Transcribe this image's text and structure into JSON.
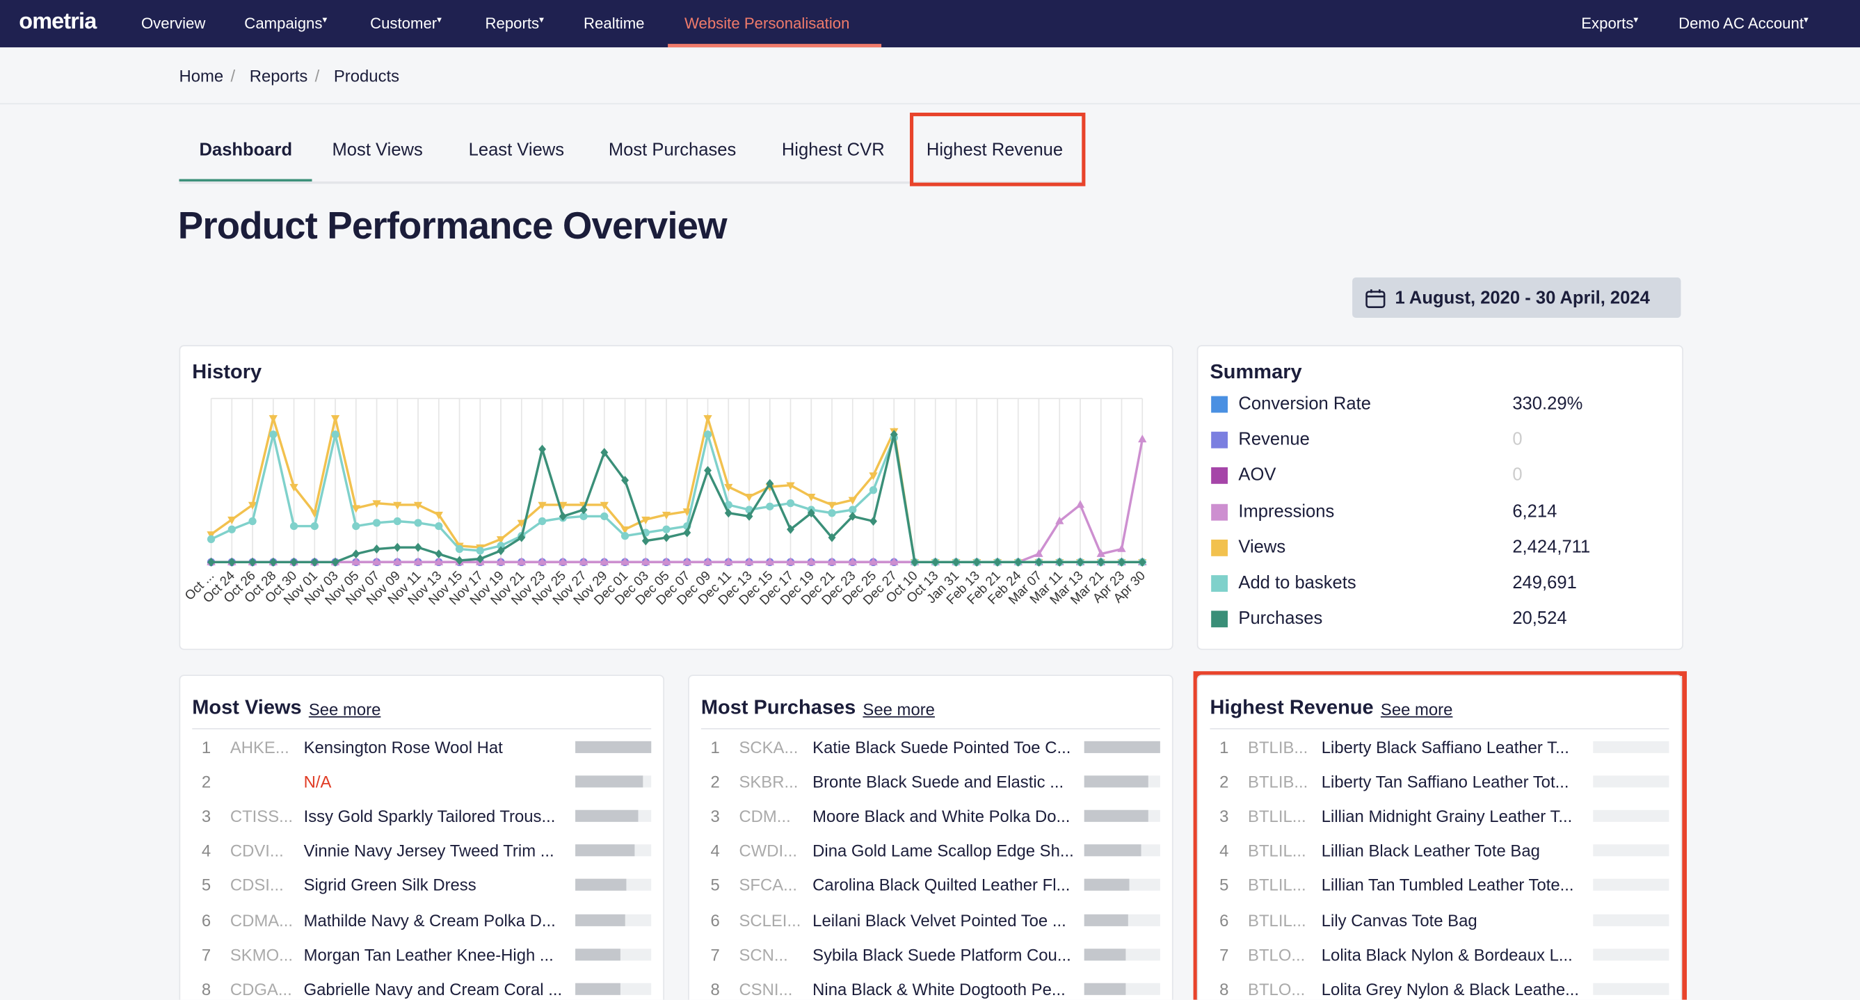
{
  "nav": {
    "logo": "ometria",
    "items": [
      "Overview",
      "Campaigns",
      "Customer",
      "Reports",
      "Realtime",
      "Website Personalisation"
    ],
    "active": 5,
    "right": [
      "Exports",
      "Demo AC Account"
    ]
  },
  "breadcrumb": [
    "Home",
    "Reports",
    "Products"
  ],
  "tabs": [
    "Dashboard",
    "Most Views",
    "Least Views",
    "Most Purchases",
    "Highest CVR",
    "Highest Revenue"
  ],
  "page_title": "Product Performance Overview",
  "date_range": "1 August, 2020 - 30 April, 2024",
  "summary_title": "Summary",
  "chart_data": {
    "type": "line",
    "title": "History",
    "categories": [
      "Oct ...",
      "Oct 24",
      "Oct 26",
      "Oct 28",
      "Oct 30",
      "Nov 01",
      "Nov 03",
      "Nov 05",
      "Nov 07",
      "Nov 09",
      "Nov 11",
      "Nov 13",
      "Nov 15",
      "Nov 17",
      "Nov 19",
      "Nov 21",
      "Nov 23",
      "Nov 25",
      "Nov 27",
      "Nov 29",
      "Dec 01",
      "Dec 03",
      "Dec 05",
      "Dec 07",
      "Dec 09",
      "Dec 11",
      "Dec 13",
      "Dec 15",
      "Dec 17",
      "Dec 19",
      "Dec 21",
      "Dec 23",
      "Dec 25",
      "Dec 27",
      "Oct 10",
      "Oct 13",
      "Jan 31",
      "Feb 13",
      "Feb 21",
      "Feb 24",
      "Mar 07",
      "Mar 11",
      "Mar 13",
      "Mar 21",
      "Apr 23",
      "Apr 30"
    ],
    "ylim": [
      0,
      100
    ],
    "grid": true,
    "series": [
      {
        "name": "Conversion Rate",
        "color": "#4a90e2",
        "total": "330.29%",
        "values": [
          0,
          0,
          0,
          0,
          0,
          0,
          0,
          0,
          0,
          0,
          0,
          0,
          0,
          0,
          0,
          0,
          0,
          0,
          0,
          0,
          0,
          0,
          0,
          0,
          0,
          0,
          0,
          0,
          0,
          0,
          0,
          0,
          0,
          0,
          0,
          0,
          0,
          0,
          0,
          0,
          0,
          0,
          0,
          0,
          0,
          0
        ]
      },
      {
        "name": "Revenue",
        "color": "#7b7fe0",
        "total": "0",
        "values": [
          0,
          0,
          0,
          0,
          0,
          0,
          0,
          0,
          0,
          0,
          0,
          0,
          0,
          0,
          0,
          0,
          0,
          0,
          0,
          0,
          0,
          0,
          0,
          0,
          0,
          0,
          0,
          0,
          0,
          0,
          0,
          0,
          0,
          0,
          0,
          0,
          0,
          0,
          0,
          0,
          0,
          0,
          0,
          0,
          0,
          0
        ]
      },
      {
        "name": "AOV",
        "color": "#a545a8",
        "total": "0",
        "values": [
          0,
          0,
          0,
          0,
          0,
          0,
          0,
          0,
          0,
          0,
          0,
          0,
          0,
          0,
          0,
          0,
          0,
          0,
          0,
          0,
          0,
          0,
          0,
          0,
          0,
          0,
          0,
          0,
          0,
          0,
          0,
          0,
          0,
          0,
          0,
          0,
          0,
          0,
          0,
          0,
          0,
          0,
          0,
          0,
          0,
          0
        ]
      },
      {
        "name": "Impressions",
        "color": "#cd8fd0",
        "total": "6,214",
        "values": [
          0,
          0,
          0,
          0,
          0,
          0,
          0,
          0,
          0,
          0,
          0,
          0,
          0,
          0,
          0,
          0,
          0,
          0,
          0,
          0,
          0,
          0,
          0,
          0,
          0,
          0,
          0,
          0,
          0,
          0,
          0,
          0,
          0,
          0,
          0,
          0,
          0,
          0,
          0,
          0,
          5,
          25,
          35,
          5,
          8,
          75
        ]
      },
      {
        "name": "Views",
        "color": "#f2c14e",
        "total": "2,424,711",
        "values": [
          17,
          26,
          35,
          88,
          46,
          30,
          88,
          33,
          36,
          35,
          35,
          29,
          10,
          9,
          14,
          24,
          35,
          35,
          35,
          35,
          20,
          26,
          29,
          31,
          88,
          46,
          40,
          46,
          47,
          40,
          35,
          38,
          53,
          80,
          0,
          0,
          0,
          0,
          0,
          0,
          0,
          0,
          0,
          0,
          0,
          0
        ]
      },
      {
        "name": "Add to baskets",
        "color": "#7fd1cb",
        "total": "249,691",
        "values": [
          14,
          20,
          25,
          78,
          22,
          22,
          78,
          22,
          24,
          25,
          24,
          22,
          8,
          7,
          10,
          16,
          25,
          27,
          28,
          28,
          16,
          18,
          20,
          22,
          78,
          35,
          32,
          34,
          36,
          32,
          30,
          32,
          44,
          76,
          0,
          0,
          0,
          0,
          0,
          0,
          0,
          0,
          0,
          0,
          0,
          0
        ]
      },
      {
        "name": "Purchases",
        "color": "#3a8f78",
        "total": "20,524",
        "values": [
          0,
          0,
          0,
          0,
          0,
          0,
          0,
          5,
          8,
          9,
          9,
          5,
          1,
          2,
          7,
          15,
          69,
          28,
          32,
          67,
          50,
          13,
          15,
          18,
          56,
          30,
          28,
          48,
          20,
          30,
          15,
          28,
          25,
          78,
          0,
          0,
          0,
          0,
          0,
          0,
          0,
          0,
          0,
          0,
          0,
          0
        ]
      }
    ]
  },
  "lists": [
    {
      "title": "Most Views",
      "link": "See more",
      "rows": [
        [
          1,
          "AHKE...",
          "Kensington Rose Wool Hat",
          100
        ],
        [
          2,
          null,
          "N/A",
          89
        ],
        [
          3,
          "CTISS...",
          "Issy Gold Sparkly Tailored Trous...",
          83
        ],
        [
          4,
          "CDVI...",
          "Vinnie Navy Jersey Tweed Trim ...",
          78
        ],
        [
          5,
          "CDSI...",
          "Sigrid Green Silk Dress",
          67
        ],
        [
          6,
          "CDMA...",
          "Mathilde Navy & Cream Polka D...",
          66
        ],
        [
          7,
          "SKMO...",
          "Morgan Tan Leather Knee-High ...",
          59
        ],
        [
          8,
          "CDGA...",
          "Gabrielle Navy and Cream Coral ...",
          59
        ]
      ]
    },
    {
      "title": "Most Purchases",
      "link": "See more",
      "rows": [
        [
          1,
          "SCKA...",
          "Katie Black Suede Pointed Toe C...",
          100
        ],
        [
          2,
          "SKBR...",
          "Bronte Black Suede and Elastic ...",
          84
        ],
        [
          3,
          "CDM...",
          "Moore Black and White Polka Do...",
          84
        ],
        [
          4,
          "CWDI...",
          "Dina Gold Lame Scallop Edge Sh...",
          75
        ],
        [
          5,
          "SFCA...",
          "Carolina Black Quilted Leather Fl...",
          59
        ],
        [
          6,
          "SCLEI...",
          "Leilani Black Velvet Pointed Toe ...",
          58
        ],
        [
          7,
          "SCN...",
          "Sybila Black Suede Platform Cou...",
          55
        ],
        [
          8,
          "CSNI...",
          "Nina Black & White Dogtooth Pe...",
          55
        ]
      ]
    },
    {
      "title": "Highest Revenue",
      "link": "See more",
      "rows": [
        [
          1,
          "BTLIB...",
          "Liberty Black Saffiano Leather T...",
          0
        ],
        [
          2,
          "BTLIB...",
          "Liberty Tan Saffiano Leather Tot...",
          0
        ],
        [
          3,
          "BTLIL...",
          "Lillian Midnight Grainy Leather T...",
          0
        ],
        [
          4,
          "BTLIL...",
          "Lillian Black Leather Tote Bag",
          0
        ],
        [
          5,
          "BTLIL...",
          "Lillian Tan Tumbled Leather Tote...",
          0
        ],
        [
          6,
          "BTLIL...",
          "Lily Canvas Tote Bag",
          0
        ],
        [
          7,
          "BTLO...",
          "Lolita Black Nylon & Bordeaux L...",
          0
        ],
        [
          8,
          "BTLO...",
          "Lolita Grey Nylon & Black Leathe...",
          0
        ]
      ]
    }
  ]
}
